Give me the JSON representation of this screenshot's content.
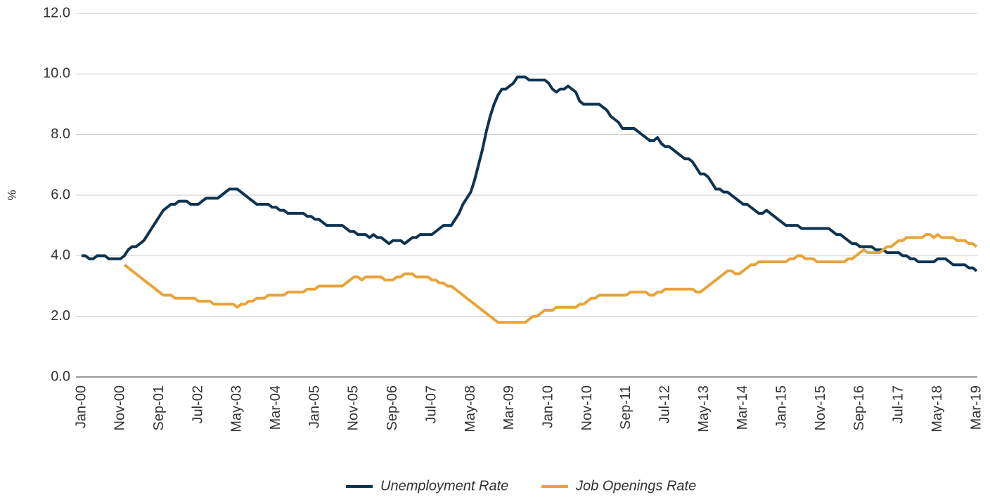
{
  "chart_data": {
    "type": "line",
    "ylabel": "%",
    "categories": [
      "Jan-00",
      null,
      null,
      null,
      null,
      null,
      null,
      null,
      null,
      null,
      "Nov-00",
      null,
      null,
      null,
      null,
      null,
      null,
      null,
      null,
      null,
      "Sep-01",
      null,
      null,
      null,
      null,
      null,
      null,
      null,
      null,
      null,
      "Jul-02",
      null,
      null,
      null,
      null,
      null,
      null,
      null,
      null,
      null,
      "May-03",
      null,
      null,
      null,
      null,
      null,
      null,
      null,
      null,
      null,
      "Mar-04",
      null,
      null,
      null,
      null,
      null,
      null,
      null,
      null,
      null,
      "Jan-05",
      null,
      null,
      null,
      null,
      null,
      null,
      null,
      null,
      null,
      "Nov-05",
      null,
      null,
      null,
      null,
      null,
      null,
      null,
      null,
      null,
      "Sep-06",
      null,
      null,
      null,
      null,
      null,
      null,
      null,
      null,
      null,
      "Jul-07",
      null,
      null,
      null,
      null,
      null,
      null,
      null,
      null,
      null,
      "May-08",
      null,
      null,
      null,
      null,
      null,
      null,
      null,
      null,
      null,
      "Mar-09",
      null,
      null,
      null,
      null,
      null,
      null,
      null,
      null,
      null,
      "Jan-10",
      null,
      null,
      null,
      null,
      null,
      null,
      null,
      null,
      null,
      "Nov-10",
      null,
      null,
      null,
      null,
      null,
      null,
      null,
      null,
      null,
      "Sep-11",
      null,
      null,
      null,
      null,
      null,
      null,
      null,
      null,
      null,
      "Jul-12",
      null,
      null,
      null,
      null,
      null,
      null,
      null,
      null,
      null,
      "May-13",
      null,
      null,
      null,
      null,
      null,
      null,
      null,
      null,
      null,
      "Mar-14",
      null,
      null,
      null,
      null,
      null,
      null,
      null,
      null,
      null,
      "Jan-15",
      null,
      null,
      null,
      null,
      null,
      null,
      null,
      null,
      null,
      "Nov-15",
      null,
      null,
      null,
      null,
      null,
      null,
      null,
      null,
      null,
      "Sep-16",
      null,
      null,
      null,
      null,
      null,
      null,
      null,
      null,
      null,
      "Jul-17",
      null,
      null,
      null,
      null,
      null,
      null,
      null,
      null,
      null,
      "May-18",
      null,
      null,
      null,
      null,
      null,
      null,
      null,
      null,
      null,
      "Mar-19"
    ],
    "series": [
      {
        "name": "Unemployment Rate",
        "color": "#0d3350",
        "values": [
          4.0,
          4.0,
          3.9,
          3.9,
          4.0,
          4.0,
          4.0,
          3.9,
          3.9,
          3.9,
          3.9,
          4.0,
          4.2,
          4.3,
          4.3,
          4.4,
          4.5,
          4.7,
          4.9,
          5.1,
          5.3,
          5.5,
          5.6,
          5.7,
          5.7,
          5.8,
          5.8,
          5.8,
          5.7,
          5.7,
          5.7,
          5.8,
          5.9,
          5.9,
          5.9,
          5.9,
          6.0,
          6.1,
          6.2,
          6.2,
          6.2,
          6.1,
          6.0,
          5.9,
          5.8,
          5.7,
          5.7,
          5.7,
          5.7,
          5.6,
          5.6,
          5.5,
          5.5,
          5.4,
          5.4,
          5.4,
          5.4,
          5.4,
          5.3,
          5.3,
          5.2,
          5.2,
          5.1,
          5.0,
          5.0,
          5.0,
          5.0,
          5.0,
          4.9,
          4.8,
          4.8,
          4.7,
          4.7,
          4.7,
          4.6,
          4.7,
          4.6,
          4.6,
          4.5,
          4.4,
          4.5,
          4.5,
          4.5,
          4.4,
          4.5,
          4.6,
          4.6,
          4.7,
          4.7,
          4.7,
          4.7,
          4.8,
          4.9,
          5.0,
          5.0,
          5.0,
          5.2,
          5.4,
          5.7,
          5.9,
          6.1,
          6.5,
          7.0,
          7.5,
          8.1,
          8.6,
          9.0,
          9.3,
          9.5,
          9.5,
          9.6,
          9.7,
          9.9,
          9.9,
          9.9,
          9.8,
          9.8,
          9.8,
          9.8,
          9.8,
          9.7,
          9.5,
          9.4,
          9.5,
          9.5,
          9.6,
          9.5,
          9.4,
          9.1,
          9.0,
          9.0,
          9.0,
          9.0,
          9.0,
          8.9,
          8.8,
          8.6,
          8.5,
          8.4,
          8.2,
          8.2,
          8.2,
          8.2,
          8.1,
          8.0,
          7.9,
          7.8,
          7.8,
          7.9,
          7.7,
          7.6,
          7.6,
          7.5,
          7.4,
          7.3,
          7.2,
          7.2,
          7.1,
          6.9,
          6.7,
          6.7,
          6.6,
          6.4,
          6.2,
          6.2,
          6.1,
          6.1,
          6.0,
          5.9,
          5.8,
          5.7,
          5.7,
          5.6,
          5.5,
          5.4,
          5.4,
          5.5,
          5.4,
          5.3,
          5.2,
          5.1,
          5.0,
          5.0,
          5.0,
          5.0,
          4.9,
          4.9,
          4.9,
          4.9,
          4.9,
          4.9,
          4.9,
          4.9,
          4.8,
          4.7,
          4.7,
          4.6,
          4.5,
          4.4,
          4.4,
          4.3,
          4.3,
          4.3,
          4.3,
          4.2,
          4.2,
          4.2,
          4.1,
          4.1,
          4.1,
          4.1,
          4.0,
          4.0,
          3.9,
          3.9,
          3.8,
          3.8,
          3.8,
          3.8,
          3.8,
          3.9,
          3.9,
          3.9,
          3.8,
          3.7,
          3.7,
          3.7,
          3.7,
          3.6,
          3.6,
          3.5
        ]
      },
      {
        "name": "Job Openings Rate",
        "color": "#e8a33a",
        "values": [
          null,
          null,
          null,
          null,
          null,
          null,
          null,
          null,
          null,
          null,
          null,
          3.7,
          3.6,
          3.5,
          3.4,
          3.3,
          3.2,
          3.1,
          3.0,
          2.9,
          2.8,
          2.7,
          2.7,
          2.7,
          2.6,
          2.6,
          2.6,
          2.6,
          2.6,
          2.6,
          2.5,
          2.5,
          2.5,
          2.5,
          2.4,
          2.4,
          2.4,
          2.4,
          2.4,
          2.4,
          2.3,
          2.4,
          2.4,
          2.5,
          2.5,
          2.6,
          2.6,
          2.6,
          2.7,
          2.7,
          2.7,
          2.7,
          2.7,
          2.8,
          2.8,
          2.8,
          2.8,
          2.8,
          2.9,
          2.9,
          2.9,
          3.0,
          3.0,
          3.0,
          3.0,
          3.0,
          3.0,
          3.0,
          3.1,
          3.2,
          3.3,
          3.3,
          3.2,
          3.3,
          3.3,
          3.3,
          3.3,
          3.3,
          3.2,
          3.2,
          3.2,
          3.3,
          3.3,
          3.4,
          3.4,
          3.4,
          3.3,
          3.3,
          3.3,
          3.3,
          3.2,
          3.2,
          3.1,
          3.1,
          3.0,
          3.0,
          2.9,
          2.8,
          2.7,
          2.6,
          2.5,
          2.4,
          2.3,
          2.2,
          2.1,
          2.0,
          1.9,
          1.8,
          1.8,
          1.8,
          1.8,
          1.8,
          1.8,
          1.8,
          1.8,
          1.9,
          2.0,
          2.0,
          2.1,
          2.2,
          2.2,
          2.2,
          2.3,
          2.3,
          2.3,
          2.3,
          2.3,
          2.3,
          2.4,
          2.4,
          2.5,
          2.6,
          2.6,
          2.7,
          2.7,
          2.7,
          2.7,
          2.7,
          2.7,
          2.7,
          2.7,
          2.8,
          2.8,
          2.8,
          2.8,
          2.8,
          2.7,
          2.7,
          2.8,
          2.8,
          2.9,
          2.9,
          2.9,
          2.9,
          2.9,
          2.9,
          2.9,
          2.9,
          2.8,
          2.8,
          2.9,
          3.0,
          3.1,
          3.2,
          3.3,
          3.4,
          3.5,
          3.5,
          3.4,
          3.4,
          3.5,
          3.6,
          3.7,
          3.7,
          3.8,
          3.8,
          3.8,
          3.8,
          3.8,
          3.8,
          3.8,
          3.8,
          3.9,
          3.9,
          4.0,
          4.0,
          3.9,
          3.9,
          3.9,
          3.8,
          3.8,
          3.8,
          3.8,
          3.8,
          3.8,
          3.8,
          3.8,
          3.9,
          3.9,
          4.0,
          4.1,
          4.2,
          4.1,
          4.1,
          4.1,
          4.1,
          4.2,
          4.3,
          4.3,
          4.4,
          4.5,
          4.5,
          4.6,
          4.6,
          4.6,
          4.6,
          4.6,
          4.7,
          4.7,
          4.6,
          4.7,
          4.6,
          4.6,
          4.6,
          4.6,
          4.5,
          4.5,
          4.5,
          4.4,
          4.4,
          4.3
        ]
      }
    ],
    "ylim": [
      0,
      12
    ],
    "yticks": [
      {
        "value": 0,
        "label": "0.0"
      },
      {
        "value": 2,
        "label": "2.0"
      },
      {
        "value": 4,
        "label": "4.0"
      },
      {
        "value": 6,
        "label": "6.0"
      },
      {
        "value": 8,
        "label": "8.0"
      },
      {
        "value": 10,
        "label": "10.0"
      },
      {
        "value": 12,
        "label": "12.0"
      }
    ],
    "grid": true,
    "legend": "bottom"
  }
}
